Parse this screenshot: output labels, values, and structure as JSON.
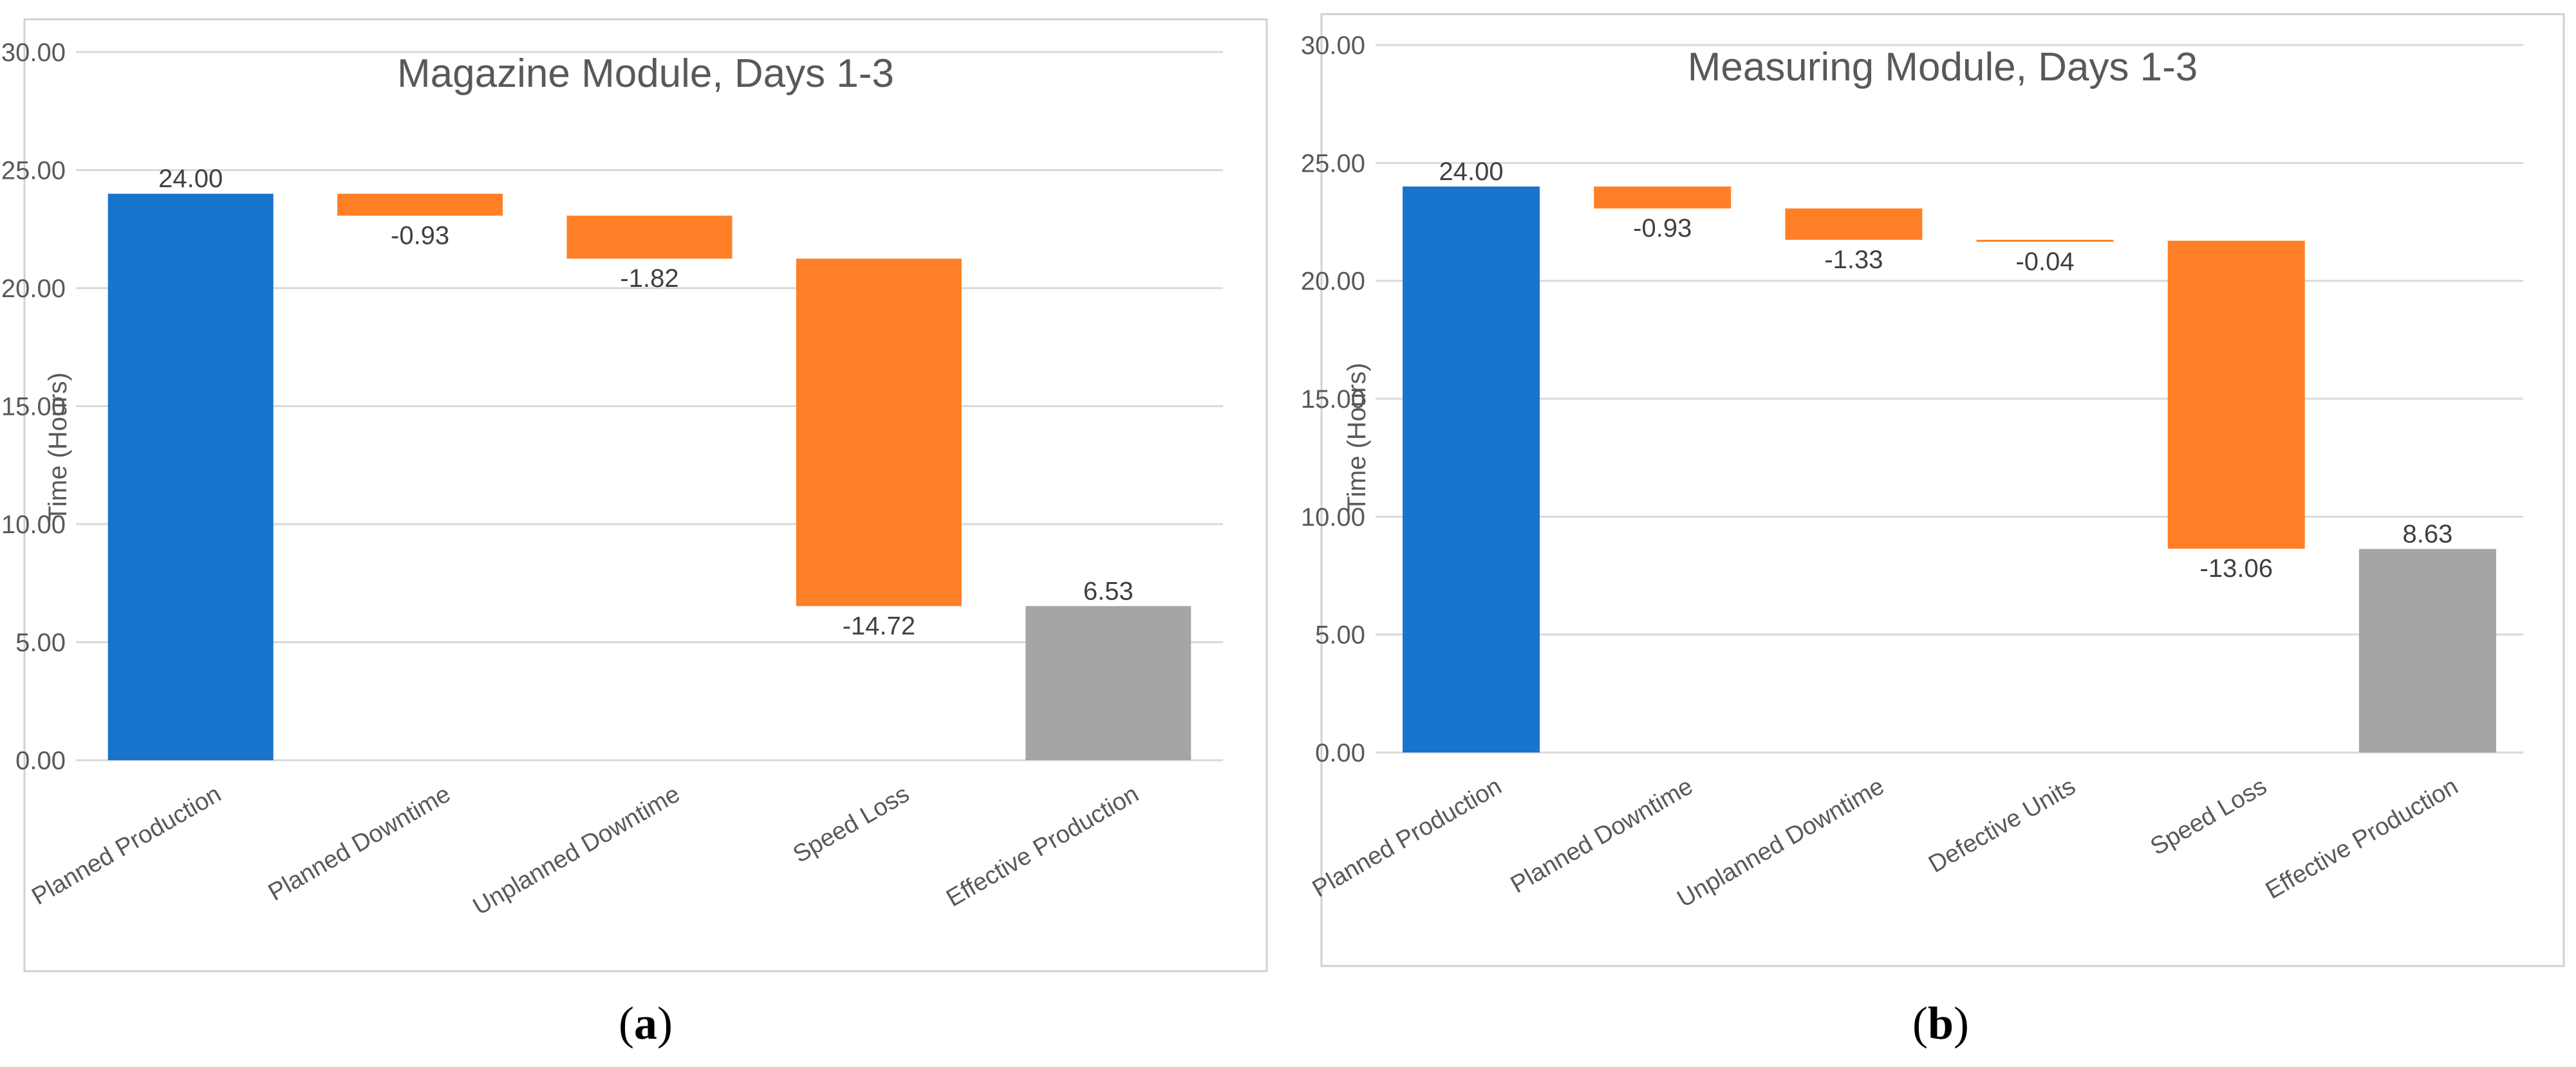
{
  "chart_data": [
    {
      "type": "waterfall",
      "title": "Magazine Module, Days 1-3",
      "ylabel": "Time (Hours)",
      "xlabel": "",
      "ylim": [
        0,
        30
      ],
      "yticks": [
        "0.00",
        "5.00",
        "10.00",
        "15.00",
        "20.00",
        "25.00",
        "30.00"
      ],
      "grid": true,
      "caption_letter": "a",
      "categories": [
        "Planned Production",
        "Planned Downtime",
        "Unplanned Downtime",
        "Speed Loss",
        "Effective Production"
      ],
      "values": [
        24.0,
        -0.93,
        -1.82,
        -14.72,
        6.53
      ],
      "labels": [
        "24.00",
        "-0.93",
        "-1.82",
        "-14.72",
        "6.53"
      ],
      "kinds": [
        "total",
        "loss",
        "loss",
        "loss",
        "total"
      ]
    },
    {
      "type": "waterfall",
      "title": "Measuring Module, Days 1-3",
      "ylabel": "Time (Hours)",
      "xlabel": "",
      "ylim": [
        0,
        30
      ],
      "yticks": [
        "0.00",
        "5.00",
        "10.00",
        "15.00",
        "20.00",
        "25.00",
        "30.00"
      ],
      "grid": true,
      "caption_letter": "b",
      "categories": [
        "Planned Production",
        "Planned Downtime",
        "Unplanned Downtime",
        "Defective Units",
        "Speed Loss",
        "Effective Production"
      ],
      "values": [
        24.0,
        -0.93,
        -1.33,
        -0.04,
        -13.06,
        8.63
      ],
      "labels": [
        "24.00",
        "-0.93",
        "-1.33",
        "-0.04",
        "-13.06",
        "8.63"
      ],
      "kinds": [
        "total",
        "loss",
        "loss",
        "loss",
        "loss",
        "total"
      ]
    }
  ],
  "colors": {
    "start_total": "#1874cd",
    "loss": "#ff7f27",
    "end_total": "#a5a5a5"
  }
}
